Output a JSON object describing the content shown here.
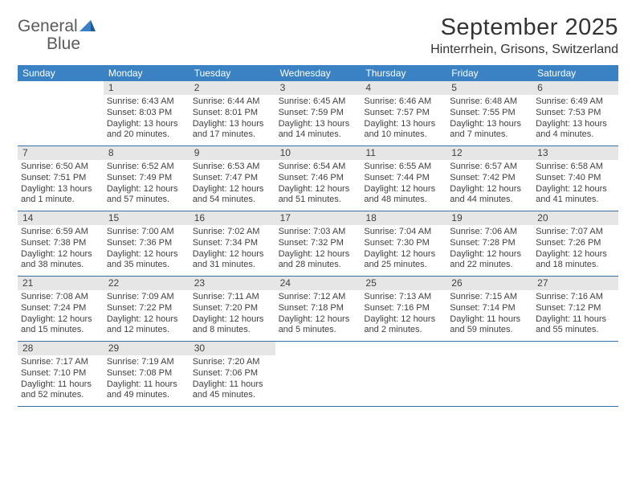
{
  "logo": {
    "text1": "General",
    "text2": "Blue"
  },
  "title": "September 2025",
  "location": "Hinterrhein, Grisons, Switzerland",
  "colors": {
    "header_bg": "#3b82c4",
    "header_text": "#ffffff",
    "daynum_bg": "#e6e6e6",
    "week_border": "#3b6fa0",
    "body_text": "#404040",
    "logo_gray": "#5a5a5a",
    "logo_blue": "#3b7fc4",
    "page_bg": "#ffffff"
  },
  "dayNames": [
    "Sunday",
    "Monday",
    "Tuesday",
    "Wednesday",
    "Thursday",
    "Friday",
    "Saturday"
  ],
  "weeks": [
    [
      {
        "n": "",
        "sunrise": "",
        "sunset": "",
        "daylight": ""
      },
      {
        "n": "1",
        "sunrise": "Sunrise: 6:43 AM",
        "sunset": "Sunset: 8:03 PM",
        "daylight": "Daylight: 13 hours and 20 minutes."
      },
      {
        "n": "2",
        "sunrise": "Sunrise: 6:44 AM",
        "sunset": "Sunset: 8:01 PM",
        "daylight": "Daylight: 13 hours and 17 minutes."
      },
      {
        "n": "3",
        "sunrise": "Sunrise: 6:45 AM",
        "sunset": "Sunset: 7:59 PM",
        "daylight": "Daylight: 13 hours and 14 minutes."
      },
      {
        "n": "4",
        "sunrise": "Sunrise: 6:46 AM",
        "sunset": "Sunset: 7:57 PM",
        "daylight": "Daylight: 13 hours and 10 minutes."
      },
      {
        "n": "5",
        "sunrise": "Sunrise: 6:48 AM",
        "sunset": "Sunset: 7:55 PM",
        "daylight": "Daylight: 13 hours and 7 minutes."
      },
      {
        "n": "6",
        "sunrise": "Sunrise: 6:49 AM",
        "sunset": "Sunset: 7:53 PM",
        "daylight": "Daylight: 13 hours and 4 minutes."
      }
    ],
    [
      {
        "n": "7",
        "sunrise": "Sunrise: 6:50 AM",
        "sunset": "Sunset: 7:51 PM",
        "daylight": "Daylight: 13 hours and 1 minute."
      },
      {
        "n": "8",
        "sunrise": "Sunrise: 6:52 AM",
        "sunset": "Sunset: 7:49 PM",
        "daylight": "Daylight: 12 hours and 57 minutes."
      },
      {
        "n": "9",
        "sunrise": "Sunrise: 6:53 AM",
        "sunset": "Sunset: 7:47 PM",
        "daylight": "Daylight: 12 hours and 54 minutes."
      },
      {
        "n": "10",
        "sunrise": "Sunrise: 6:54 AM",
        "sunset": "Sunset: 7:46 PM",
        "daylight": "Daylight: 12 hours and 51 minutes."
      },
      {
        "n": "11",
        "sunrise": "Sunrise: 6:55 AM",
        "sunset": "Sunset: 7:44 PM",
        "daylight": "Daylight: 12 hours and 48 minutes."
      },
      {
        "n": "12",
        "sunrise": "Sunrise: 6:57 AM",
        "sunset": "Sunset: 7:42 PM",
        "daylight": "Daylight: 12 hours and 44 minutes."
      },
      {
        "n": "13",
        "sunrise": "Sunrise: 6:58 AM",
        "sunset": "Sunset: 7:40 PM",
        "daylight": "Daylight: 12 hours and 41 minutes."
      }
    ],
    [
      {
        "n": "14",
        "sunrise": "Sunrise: 6:59 AM",
        "sunset": "Sunset: 7:38 PM",
        "daylight": "Daylight: 12 hours and 38 minutes."
      },
      {
        "n": "15",
        "sunrise": "Sunrise: 7:00 AM",
        "sunset": "Sunset: 7:36 PM",
        "daylight": "Daylight: 12 hours and 35 minutes."
      },
      {
        "n": "16",
        "sunrise": "Sunrise: 7:02 AM",
        "sunset": "Sunset: 7:34 PM",
        "daylight": "Daylight: 12 hours and 31 minutes."
      },
      {
        "n": "17",
        "sunrise": "Sunrise: 7:03 AM",
        "sunset": "Sunset: 7:32 PM",
        "daylight": "Daylight: 12 hours and 28 minutes."
      },
      {
        "n": "18",
        "sunrise": "Sunrise: 7:04 AM",
        "sunset": "Sunset: 7:30 PM",
        "daylight": "Daylight: 12 hours and 25 minutes."
      },
      {
        "n": "19",
        "sunrise": "Sunrise: 7:06 AM",
        "sunset": "Sunset: 7:28 PM",
        "daylight": "Daylight: 12 hours and 22 minutes."
      },
      {
        "n": "20",
        "sunrise": "Sunrise: 7:07 AM",
        "sunset": "Sunset: 7:26 PM",
        "daylight": "Daylight: 12 hours and 18 minutes."
      }
    ],
    [
      {
        "n": "21",
        "sunrise": "Sunrise: 7:08 AM",
        "sunset": "Sunset: 7:24 PM",
        "daylight": "Daylight: 12 hours and 15 minutes."
      },
      {
        "n": "22",
        "sunrise": "Sunrise: 7:09 AM",
        "sunset": "Sunset: 7:22 PM",
        "daylight": "Daylight: 12 hours and 12 minutes."
      },
      {
        "n": "23",
        "sunrise": "Sunrise: 7:11 AM",
        "sunset": "Sunset: 7:20 PM",
        "daylight": "Daylight: 12 hours and 8 minutes."
      },
      {
        "n": "24",
        "sunrise": "Sunrise: 7:12 AM",
        "sunset": "Sunset: 7:18 PM",
        "daylight": "Daylight: 12 hours and 5 minutes."
      },
      {
        "n": "25",
        "sunrise": "Sunrise: 7:13 AM",
        "sunset": "Sunset: 7:16 PM",
        "daylight": "Daylight: 12 hours and 2 minutes."
      },
      {
        "n": "26",
        "sunrise": "Sunrise: 7:15 AM",
        "sunset": "Sunset: 7:14 PM",
        "daylight": "Daylight: 11 hours and 59 minutes."
      },
      {
        "n": "27",
        "sunrise": "Sunrise: 7:16 AM",
        "sunset": "Sunset: 7:12 PM",
        "daylight": "Daylight: 11 hours and 55 minutes."
      }
    ],
    [
      {
        "n": "28",
        "sunrise": "Sunrise: 7:17 AM",
        "sunset": "Sunset: 7:10 PM",
        "daylight": "Daylight: 11 hours and 52 minutes."
      },
      {
        "n": "29",
        "sunrise": "Sunrise: 7:19 AM",
        "sunset": "Sunset: 7:08 PM",
        "daylight": "Daylight: 11 hours and 49 minutes."
      },
      {
        "n": "30",
        "sunrise": "Sunrise: 7:20 AM",
        "sunset": "Sunset: 7:06 PM",
        "daylight": "Daylight: 11 hours and 45 minutes."
      },
      {
        "n": "",
        "sunrise": "",
        "sunset": "",
        "daylight": ""
      },
      {
        "n": "",
        "sunrise": "",
        "sunset": "",
        "daylight": ""
      },
      {
        "n": "",
        "sunrise": "",
        "sunset": "",
        "daylight": ""
      },
      {
        "n": "",
        "sunrise": "",
        "sunset": "",
        "daylight": ""
      }
    ]
  ]
}
